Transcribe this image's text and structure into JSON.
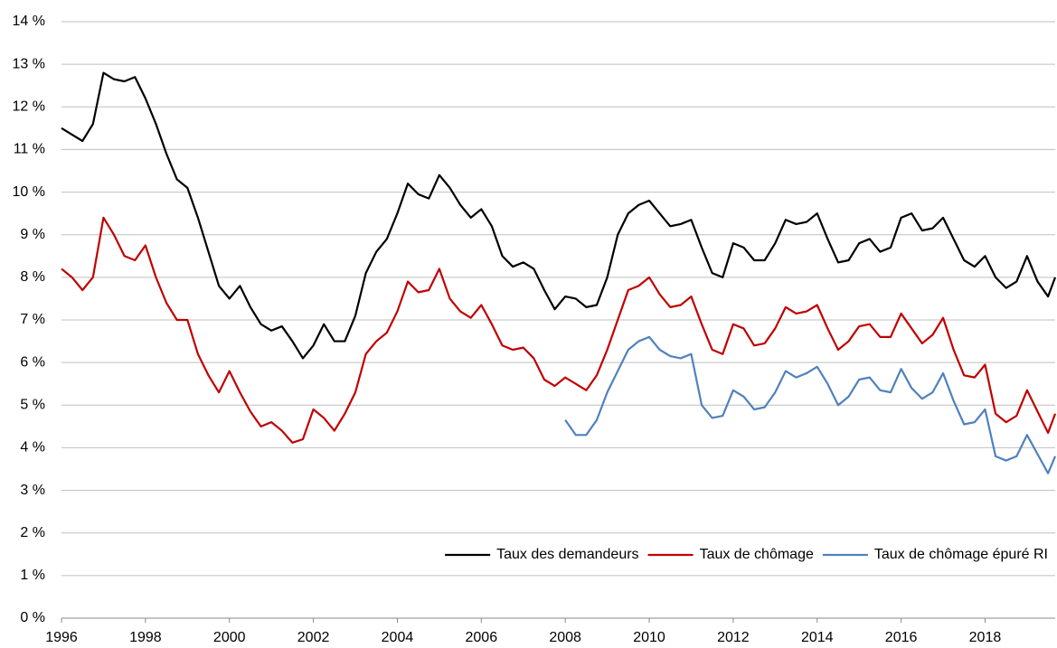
{
  "chart_data": {
    "type": "line",
    "x": [
      1996,
      1996.25,
      1996.5,
      1996.75,
      1997,
      1997.25,
      1997.5,
      1997.75,
      1998,
      1998.25,
      1998.5,
      1998.75,
      1999,
      1999.25,
      1999.5,
      1999.75,
      2000,
      2000.25,
      2000.5,
      2000.75,
      2001,
      2001.25,
      2001.5,
      2001.75,
      2002,
      2002.25,
      2002.5,
      2002.75,
      2003,
      2003.25,
      2003.5,
      2003.75,
      2004,
      2004.25,
      2004.5,
      2004.75,
      2005,
      2005.25,
      2005.5,
      2005.75,
      2006,
      2006.25,
      2006.5,
      2006.75,
      2007,
      2007.25,
      2007.5,
      2007.75,
      2008,
      2008.25,
      2008.5,
      2008.75,
      2009,
      2009.25,
      2009.5,
      2009.75,
      2010,
      2010.25,
      2010.5,
      2010.75,
      2011,
      2011.25,
      2011.5,
      2011.75,
      2012,
      2012.25,
      2012.5,
      2012.75,
      2013,
      2013.25,
      2013.5,
      2013.75,
      2014,
      2014.25,
      2014.5,
      2014.75,
      2015,
      2015.25,
      2015.5,
      2015.75,
      2016,
      2016.25,
      2016.5,
      2016.75,
      2017,
      2017.25,
      2017.5,
      2017.75,
      2018,
      2018.25,
      2018.5,
      2018.75,
      2019,
      2019.25,
      2019.5,
      2019.67
    ],
    "series": [
      {
        "name": "Taux des demandeurs",
        "color": "#000000",
        "values": [
          11.5,
          11.35,
          11.2,
          11.6,
          12.8,
          12.65,
          12.6,
          12.7,
          12.2,
          11.6,
          10.9,
          10.3,
          10.1,
          9.4,
          8.6,
          7.8,
          7.5,
          7.8,
          7.3,
          6.9,
          6.75,
          6.85,
          6.5,
          6.1,
          6.4,
          6.9,
          6.5,
          6.5,
          7.1,
          8.1,
          8.6,
          8.9,
          9.5,
          10.2,
          9.95,
          9.85,
          10.4,
          10.1,
          9.7,
          9.4,
          9.6,
          9.2,
          8.5,
          8.25,
          8.35,
          8.2,
          7.7,
          7.25,
          7.55,
          7.5,
          7.3,
          7.35,
          8.0,
          9.0,
          9.5,
          9.7,
          9.8,
          9.5,
          9.2,
          9.25,
          9.35,
          8.7,
          8.1,
          8.0,
          8.8,
          8.7,
          8.4,
          8.4,
          8.8,
          9.35,
          9.25,
          9.3,
          9.5,
          8.9,
          8.35,
          8.4,
          8.8,
          8.9,
          8.6,
          8.7,
          9.4,
          9.5,
          9.1,
          9.15,
          9.4,
          8.9,
          8.4,
          8.25,
          8.5,
          8.0,
          7.75,
          7.9,
          8.5,
          7.9,
          7.55,
          8.0
        ]
      },
      {
        "name": "Taux de chômage",
        "color": "#c00000",
        "values": [
          8.2,
          8.0,
          7.7,
          8.0,
          9.4,
          9.0,
          8.5,
          8.4,
          8.75,
          8.0,
          7.4,
          7.0,
          7.0,
          6.2,
          5.7,
          5.3,
          5.8,
          5.3,
          4.85,
          4.5,
          4.6,
          4.4,
          4.12,
          4.2,
          4.9,
          4.7,
          4.4,
          4.8,
          5.3,
          6.2,
          6.5,
          6.7,
          7.2,
          7.9,
          7.65,
          7.7,
          8.2,
          7.5,
          7.2,
          7.05,
          7.35,
          6.9,
          6.4,
          6.3,
          6.35,
          6.1,
          5.6,
          5.45,
          5.65,
          5.5,
          5.35,
          5.7,
          6.3,
          7.0,
          7.7,
          7.8,
          8.0,
          7.6,
          7.3,
          7.35,
          7.55,
          6.9,
          6.3,
          6.2,
          6.9,
          6.8,
          6.4,
          6.45,
          6.8,
          7.3,
          7.15,
          7.2,
          7.35,
          6.8,
          6.3,
          6.5,
          6.85,
          6.9,
          6.6,
          6.6,
          7.15,
          6.8,
          6.45,
          6.65,
          7.05,
          6.3,
          5.7,
          5.65,
          5.95,
          4.8,
          4.6,
          4.75,
          5.35,
          4.85,
          4.35,
          4.8
        ]
      },
      {
        "name": "Taux de chômage épuré RI",
        "color": "#4f81bd",
        "values": [
          null,
          null,
          null,
          null,
          null,
          null,
          null,
          null,
          null,
          null,
          null,
          null,
          null,
          null,
          null,
          null,
          null,
          null,
          null,
          null,
          null,
          null,
          null,
          null,
          null,
          null,
          null,
          null,
          null,
          null,
          null,
          null,
          null,
          null,
          null,
          null,
          null,
          null,
          null,
          null,
          null,
          null,
          null,
          null,
          null,
          null,
          null,
          null,
          4.65,
          4.3,
          4.3,
          4.65,
          5.3,
          5.8,
          6.3,
          6.5,
          6.6,
          6.3,
          6.15,
          6.1,
          6.2,
          5.0,
          4.7,
          4.75,
          5.35,
          5.2,
          4.9,
          4.95,
          5.3,
          5.8,
          5.65,
          5.75,
          5.9,
          5.5,
          5.0,
          5.2,
          5.6,
          5.65,
          5.35,
          5.3,
          5.85,
          5.4,
          5.15,
          5.3,
          5.75,
          5.1,
          4.55,
          4.6,
          4.9,
          3.8,
          3.7,
          3.8,
          4.3,
          3.85,
          3.4,
          3.8
        ]
      }
    ],
    "xlim": [
      1996,
      2019.67
    ],
    "xticks": [
      1996,
      1998,
      2000,
      2002,
      2004,
      2006,
      2008,
      2010,
      2012,
      2014,
      2016,
      2018
    ],
    "ylim": [
      0,
      14
    ],
    "yticks": [
      {
        "value": 0,
        "label": "0 %"
      },
      {
        "value": 1,
        "label": "1 %"
      },
      {
        "value": 2,
        "label": "2 %"
      },
      {
        "value": 3,
        "label": "3 %"
      },
      {
        "value": 4,
        "label": "4 %"
      },
      {
        "value": 5,
        "label": "5 %"
      },
      {
        "value": 6,
        "label": "6 %"
      },
      {
        "value": 7,
        "label": "7 %"
      },
      {
        "value": 8,
        "label": "8 %"
      },
      {
        "value": 9,
        "label": "9 %"
      },
      {
        "value": 10,
        "label": "10 %"
      },
      {
        "value": 11,
        "label": "11 %"
      },
      {
        "value": 12,
        "label": "12 %"
      },
      {
        "value": 13,
        "label": "13 %"
      },
      {
        "value": 14,
        "label": "14 %"
      }
    ],
    "grid": true,
    "legend": "lower right"
  }
}
